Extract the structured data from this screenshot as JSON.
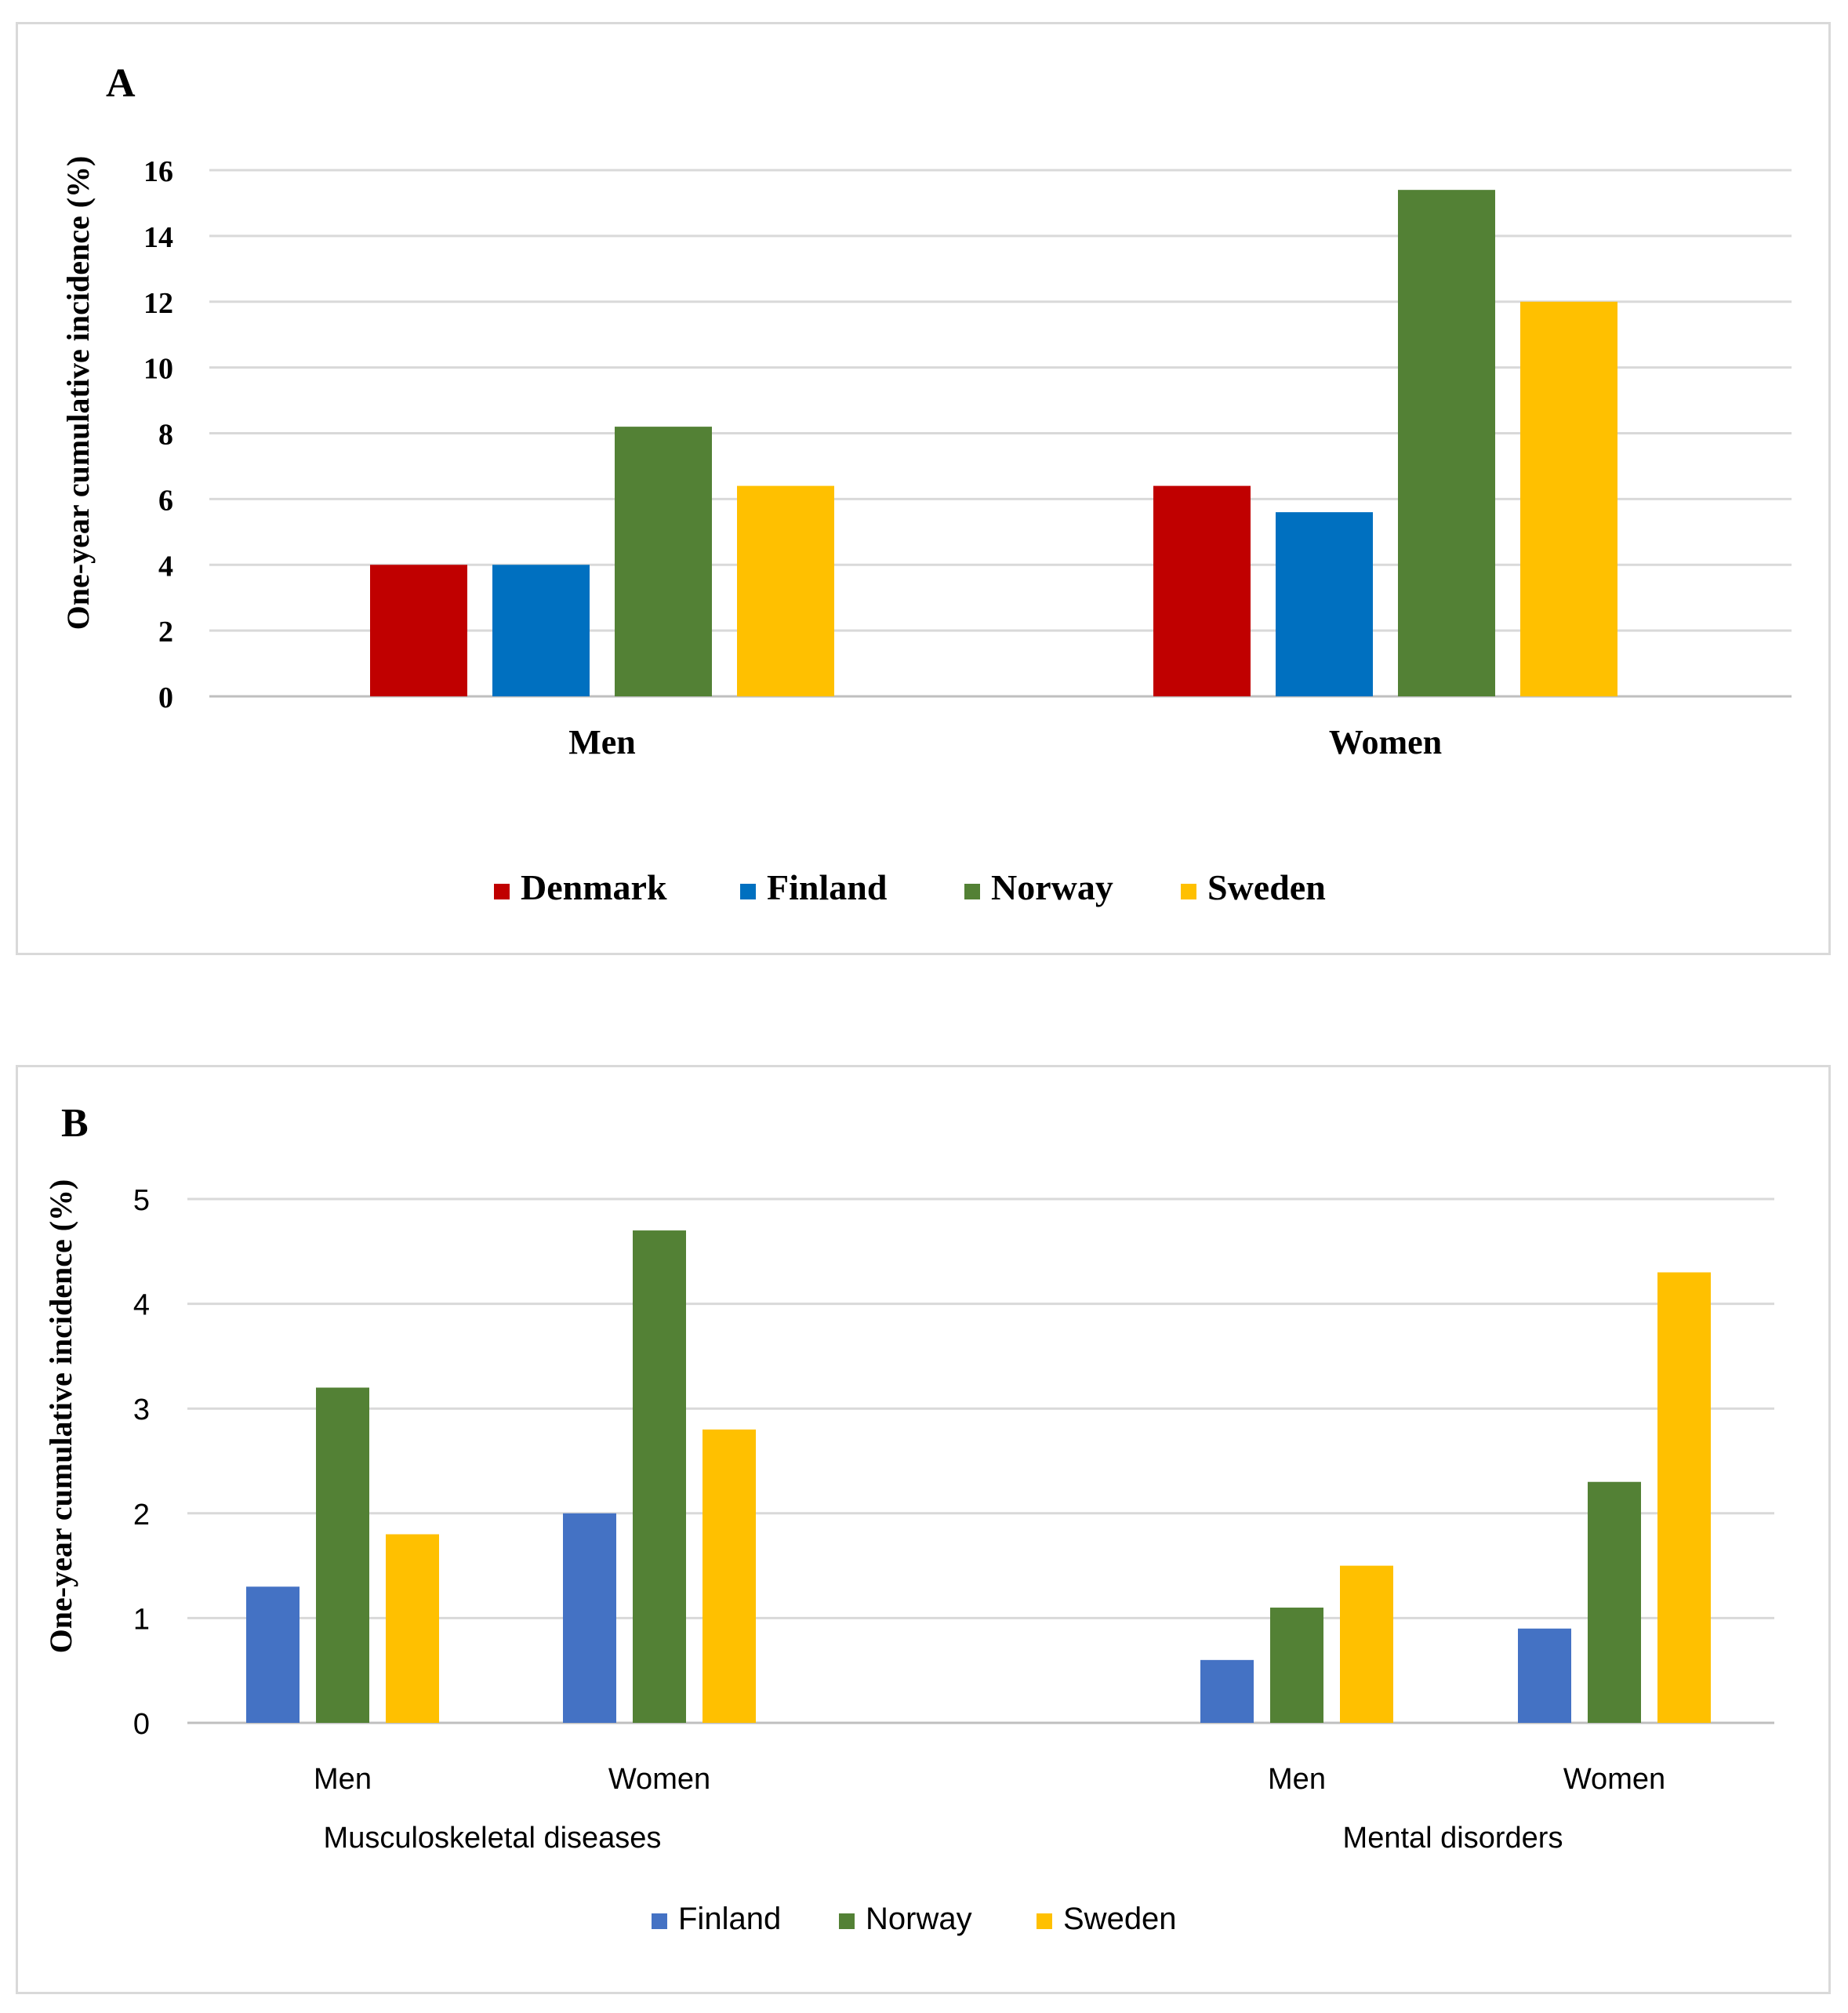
{
  "chart_data": [
    {
      "panel": "A",
      "type": "bar",
      "title": "",
      "panel_label": "A",
      "ylabel": "One-year cumulative incidence (%)",
      "xlabel": "",
      "ylim": [
        0,
        16
      ],
      "yticks": [
        "0",
        "2",
        "4",
        "6",
        "8",
        "10",
        "12",
        "14",
        "16"
      ],
      "grid": true,
      "legend_position": "bottom",
      "categories": [
        "Men",
        "Women"
      ],
      "series": [
        {
          "name": "Denmark",
          "color": "#c00000",
          "values": [
            4.0,
            6.4
          ]
        },
        {
          "name": "Finland",
          "color": "#0070c0",
          "values": [
            4.0,
            5.6
          ]
        },
        {
          "name": "Norway",
          "color": "#538135",
          "values": [
            8.2,
            15.4
          ]
        },
        {
          "name": "Sweden",
          "color": "#ffc000",
          "values": [
            6.4,
            12.0
          ]
        }
      ]
    },
    {
      "panel": "B",
      "type": "bar",
      "title": "",
      "panel_label": "B",
      "ylabel": "One-year cumulative incidence (%)",
      "xlabel": "",
      "ylim": [
        0,
        5
      ],
      "yticks": [
        "0",
        "1",
        "2",
        "3",
        "4",
        "5"
      ],
      "grid": true,
      "legend_position": "bottom",
      "categories": [
        "Men",
        "Women",
        "Men",
        "Women"
      ],
      "groups": [
        {
          "label": "Musculoskeletal diseases",
          "categories": [
            0,
            1
          ]
        },
        {
          "label": "Mental disorders",
          "categories": [
            2,
            3
          ]
        }
      ],
      "series": [
        {
          "name": "Finland",
          "color": "#4472c4",
          "values": [
            1.3,
            2.0,
            0.6,
            0.9
          ]
        },
        {
          "name": "Norway",
          "color": "#538135",
          "values": [
            3.2,
            4.7,
            1.1,
            2.3
          ]
        },
        {
          "name": "Sweden",
          "color": "#ffc000",
          "values": [
            1.8,
            2.8,
            1.5,
            4.3
          ]
        }
      ]
    }
  ]
}
